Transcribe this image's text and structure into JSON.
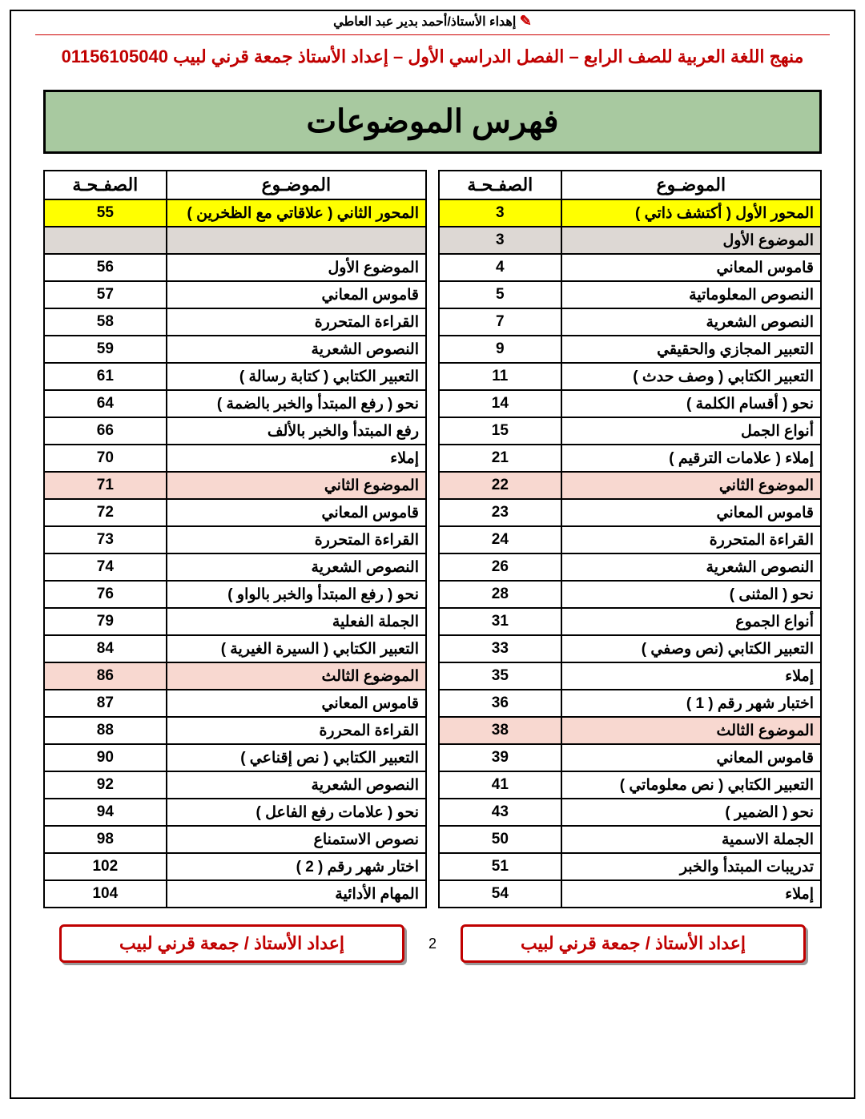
{
  "top_ribbon": "إهداء الأستاذ/أحمد بدير عبد العاطي",
  "header_line": "منهج اللغة العربية للصف الرابع – الفصل الدراسي الأول – إعداد الأستاذ جمعة قرني لبيب 01156105040",
  "banner_title": "فهرس الموضوعات",
  "columns": {
    "topic": "الموضـوع",
    "page": "الصفـحـة"
  },
  "right_table": [
    {
      "topic": "المحور الأول  ( أكتشف ذاتي )",
      "page": "3",
      "hl": "yellow"
    },
    {
      "topic": "الموضوع الأول",
      "page": "3",
      "hl": "gray"
    },
    {
      "topic": "قاموس المعاني",
      "page": "4"
    },
    {
      "topic": "النصوص المعلوماتية",
      "page": "5"
    },
    {
      "topic": "النصوص الشعرية",
      "page": "7"
    },
    {
      "topic": "التعبير المجازي والحقيقي",
      "page": "9"
    },
    {
      "topic": "التعبير الكتابي  ( وصف حدث )",
      "page": "11"
    },
    {
      "topic": "نحو ( أقسام الكلمة )",
      "page": "14"
    },
    {
      "topic": "أنواع الجمل",
      "page": "15"
    },
    {
      "topic": "إملاء ( علامات الترقيم )",
      "page": "21"
    },
    {
      "topic": "الموضوع الثاني",
      "page": "22",
      "hl": "pink"
    },
    {
      "topic": "قاموس المعاني",
      "page": "23"
    },
    {
      "topic": "القراءة المتحررة",
      "page": "24"
    },
    {
      "topic": "النصوص الشعرية",
      "page": "26"
    },
    {
      "topic": "نحو ( المثنى )",
      "page": "28"
    },
    {
      "topic": "أنواع الجموع",
      "page": "31"
    },
    {
      "topic": "التعبير الكتابي (نص وصفي )",
      "page": "33"
    },
    {
      "topic": "إملاء",
      "page": "35"
    },
    {
      "topic": "اختبار شهر رقم ( 1 )",
      "page": "36"
    },
    {
      "topic": "الموضوع الثالث",
      "page": "38",
      "hl": "pink"
    },
    {
      "topic": "قاموس المعاني",
      "page": "39"
    },
    {
      "topic": "التعبير الكتابي ( نص معلوماتي )",
      "page": "41"
    },
    {
      "topic": "نحو ( الضمير )",
      "page": "43"
    },
    {
      "topic": "الجملة الاسمية",
      "page": "50"
    },
    {
      "topic": "تدريبات المبتدأ والخبر",
      "page": "51"
    },
    {
      "topic": "إملاء",
      "page": "54"
    }
  ],
  "left_table": [
    {
      "topic": "المحور الثاني ( علاقاتي مع الظخرين )",
      "page": "55",
      "hl": "yellow"
    },
    {
      "topic": "",
      "page": "",
      "hl": "gray"
    },
    {
      "topic": "الموضوع الأول",
      "page": "56"
    },
    {
      "topic": "قاموس المعاني",
      "page": "57"
    },
    {
      "topic": "القراءة المتحررة",
      "page": "58"
    },
    {
      "topic": "النصوص الشعرية",
      "page": "59"
    },
    {
      "topic": "التعبير الكتابي ( كتابة رسالة )",
      "page": "61"
    },
    {
      "topic": "نحو ( رفع المبتدأ والخبر بالضمة )",
      "page": "64"
    },
    {
      "topic": "رفع المبتدأ والخبر بالألف",
      "page": "66"
    },
    {
      "topic": "إملاء",
      "page": "70"
    },
    {
      "topic": "الموضوع الثاني",
      "page": "71",
      "hl": "pink"
    },
    {
      "topic": "قاموس المعاني",
      "page": "72"
    },
    {
      "topic": "القراءة المتحررة",
      "page": "73"
    },
    {
      "topic": "النصوص الشعرية",
      "page": "74"
    },
    {
      "topic": "نحو ( رفع المبتدأ والخبر بالواو )",
      "page": "76"
    },
    {
      "topic": "الجملة الفعلية",
      "page": "79"
    },
    {
      "topic": "التعبير الكتابي ( السيرة الغيرية )",
      "page": "84"
    },
    {
      "topic": "الموضوع الثالث",
      "page": "86",
      "hl": "pink"
    },
    {
      "topic": "قاموس المعاني",
      "page": "87"
    },
    {
      "topic": "القراءة المحررة",
      "page": "88"
    },
    {
      "topic": "التعبير الكتابي ( نص إقناعي  )",
      "page": "90"
    },
    {
      "topic": "النصوص الشعرية",
      "page": "92"
    },
    {
      "topic": "نحو ( علامات رفع الفاعل )",
      "page": "94"
    },
    {
      "topic": "نصوص الاستمناع",
      "page": "98"
    },
    {
      "topic": "اختار شهر رقم ( 2 )",
      "page": "102"
    },
    {
      "topic": "المهام الأدائية",
      "page": "104"
    }
  ],
  "footer_credit": "إعداد الأستاذ / جمعة قرني لبيب",
  "page_number": "2"
}
